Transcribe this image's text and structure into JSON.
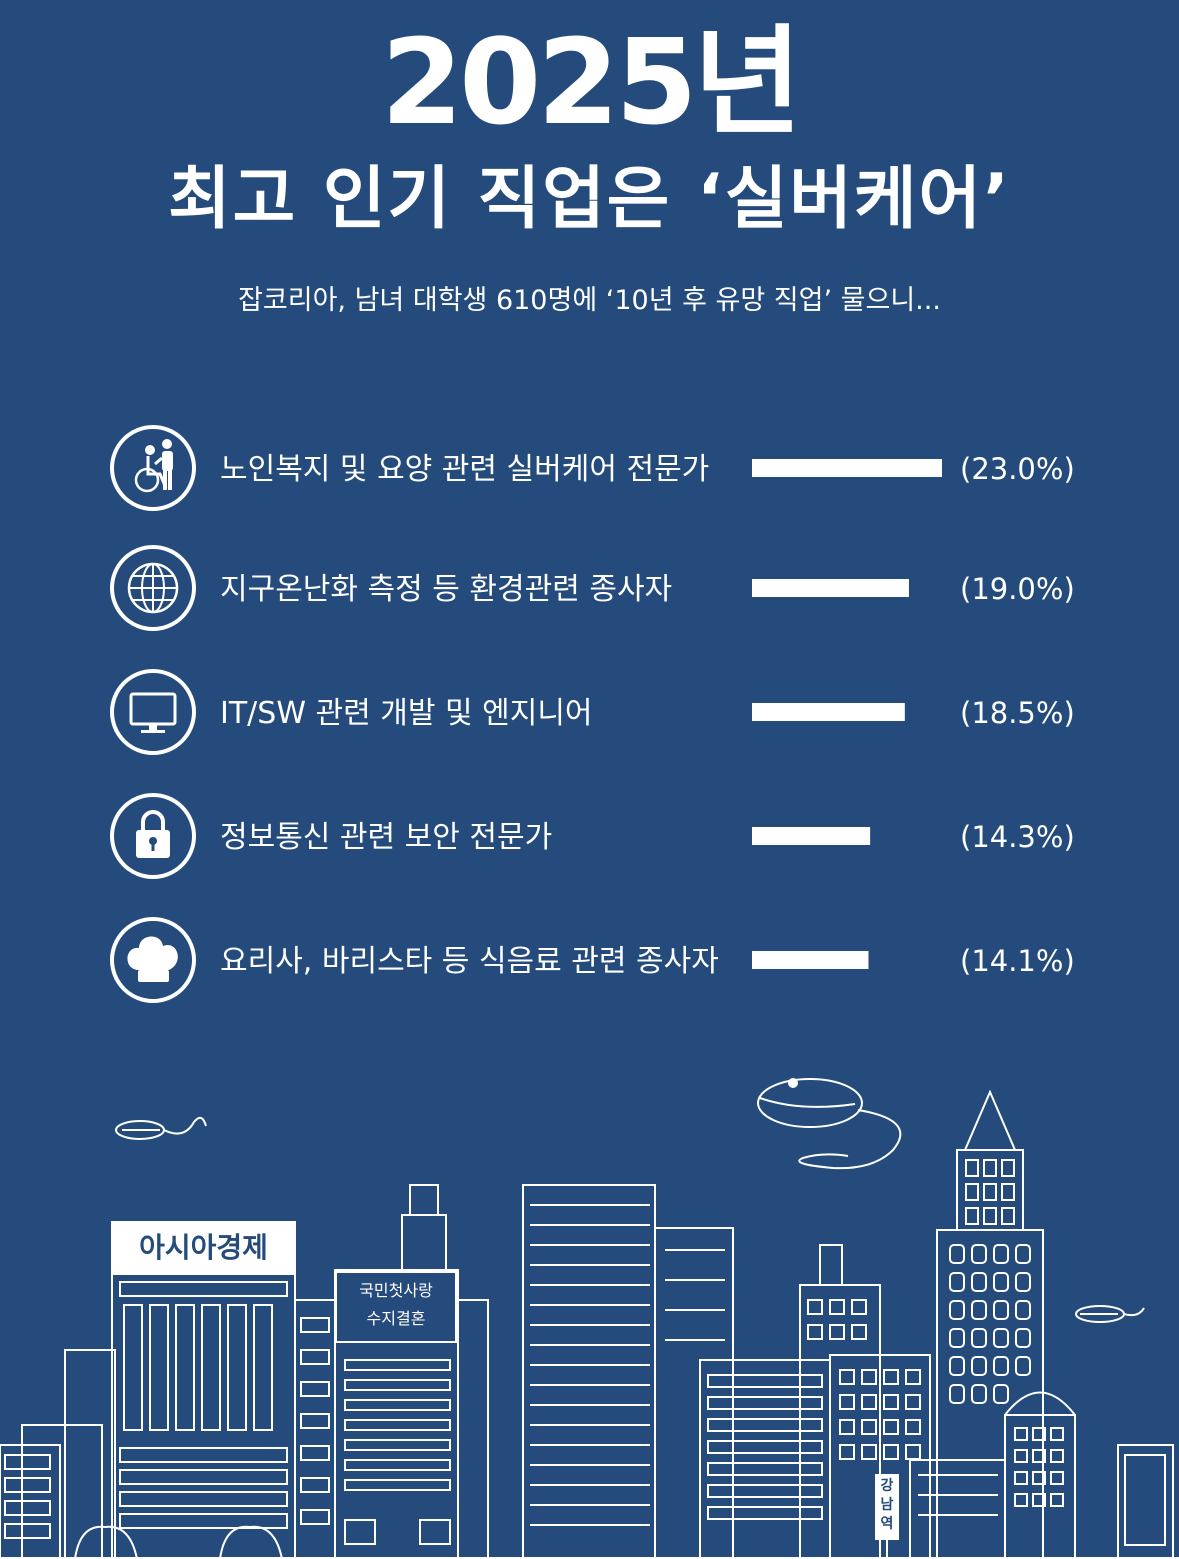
{
  "header": {
    "year": "2025년",
    "title": "최고 인기 직업은 ‘실버케어’",
    "subtitle": "잡코리아, 남녀 대학생 610명에 ‘10년 후 유망 직업’ 물으니..."
  },
  "chart_data": {
    "type": "bar",
    "orientation": "horizontal",
    "categories": [
      "노인복지 및 요양 관련 실버케어 전문가",
      "지구온난화 측정 등 환경관련 종사자",
      "IT/SW 관련 개발 및 엔지니어",
      "정보통신 관련 보안 전문가",
      "요리사, 바리스타 등 식음료 관련 종사자"
    ],
    "values": [
      23.0,
      19.0,
      18.5,
      14.3,
      14.1
    ],
    "value_labels": [
      "(23.0%)",
      "(19.0%)",
      "(18.5%)",
      "(14.3%)",
      "(14.1%)"
    ],
    "icons": [
      "wheelchair-care-icon",
      "globe-icon",
      "monitor-icon",
      "padlock-icon",
      "chef-hat-icon"
    ],
    "bar_color": "#ffffff"
  },
  "illustration": {
    "sign_company": "아시아경제",
    "sign_line1": "국민첫사랑",
    "sign_line2": "수지결혼",
    "station": "강남역"
  },
  "colors": {
    "background": "#244b7c",
    "line": "#ffffff"
  }
}
